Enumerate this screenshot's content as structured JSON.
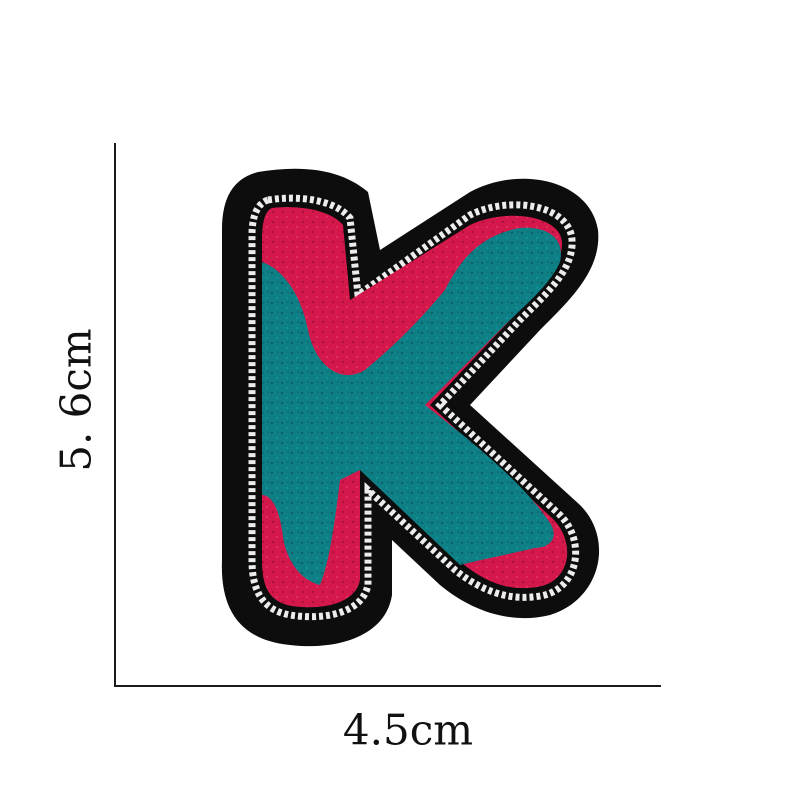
{
  "dimensions": {
    "height_label": "5. 6cm",
    "width_label": "4.5cm"
  },
  "patch": {
    "letter": "K",
    "colors": {
      "border": "#0d0d0d",
      "stitch": "#e9e9e9",
      "teal": "#0f7f86",
      "red": "#d4184b"
    }
  }
}
